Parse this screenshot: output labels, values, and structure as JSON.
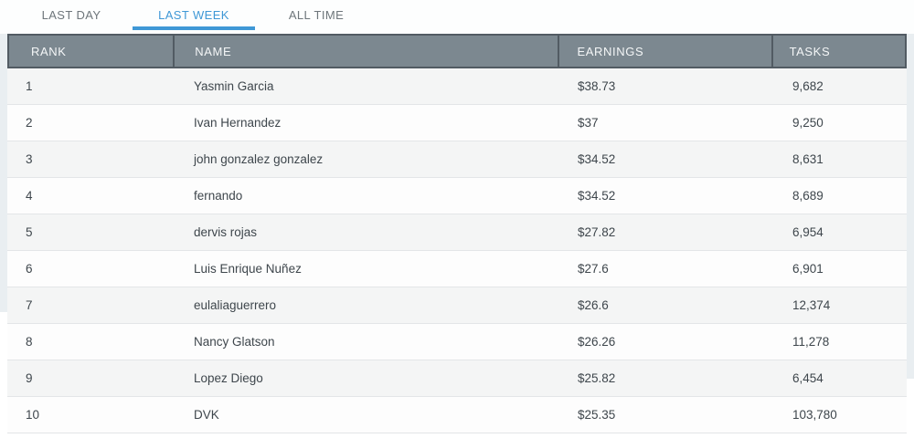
{
  "tabs": [
    {
      "label": "LAST DAY",
      "active": false
    },
    {
      "label": "LAST WEEK",
      "active": true
    },
    {
      "label": "ALL TIME",
      "active": false
    }
  ],
  "table": {
    "columns": {
      "rank": "RANK",
      "name": "NAME",
      "earnings": "EARNINGS",
      "tasks": "TASKS"
    },
    "rows": [
      {
        "rank": "1",
        "name": "Yasmin Garcia",
        "earnings": "$38.73",
        "tasks": "9,682"
      },
      {
        "rank": "2",
        "name": "Ivan Hernandez",
        "earnings": "$37",
        "tasks": "9,250"
      },
      {
        "rank": "3",
        "name": "john gonzalez gonzalez",
        "earnings": "$34.52",
        "tasks": "8,631"
      },
      {
        "rank": "4",
        "name": "fernando",
        "earnings": "$34.52",
        "tasks": "8,689"
      },
      {
        "rank": "5",
        "name": "dervis rojas",
        "earnings": "$27.82",
        "tasks": "6,954"
      },
      {
        "rank": "6",
        "name": "Luis Enrique Nuñez",
        "earnings": "$27.6",
        "tasks": "6,901"
      },
      {
        "rank": "7",
        "name": "eulaliaguerrero",
        "earnings": "$26.6",
        "tasks": "12,374"
      },
      {
        "rank": "8",
        "name": "Nancy Glatson",
        "earnings": "$26.26",
        "tasks": "11,278"
      },
      {
        "rank": "9",
        "name": "Lopez Diego",
        "earnings": "$25.82",
        "tasks": "6,454"
      },
      {
        "rank": "10",
        "name": "DVK",
        "earnings": "$25.35",
        "tasks": "103,780"
      }
    ]
  },
  "colors": {
    "accent_blue": "#3F98D6",
    "tab_inactive_text": "#6E767B",
    "header_bg": "#7C8890",
    "header_border": "#525B63",
    "header_text": "#F4F6F7",
    "row_bg": "#FDFDFD",
    "row_alt_bg": "#F4F5F5",
    "row_border": "#E3E5E7",
    "body_text": "#3E464C",
    "page_side_bg": "#E9EEF1"
  }
}
